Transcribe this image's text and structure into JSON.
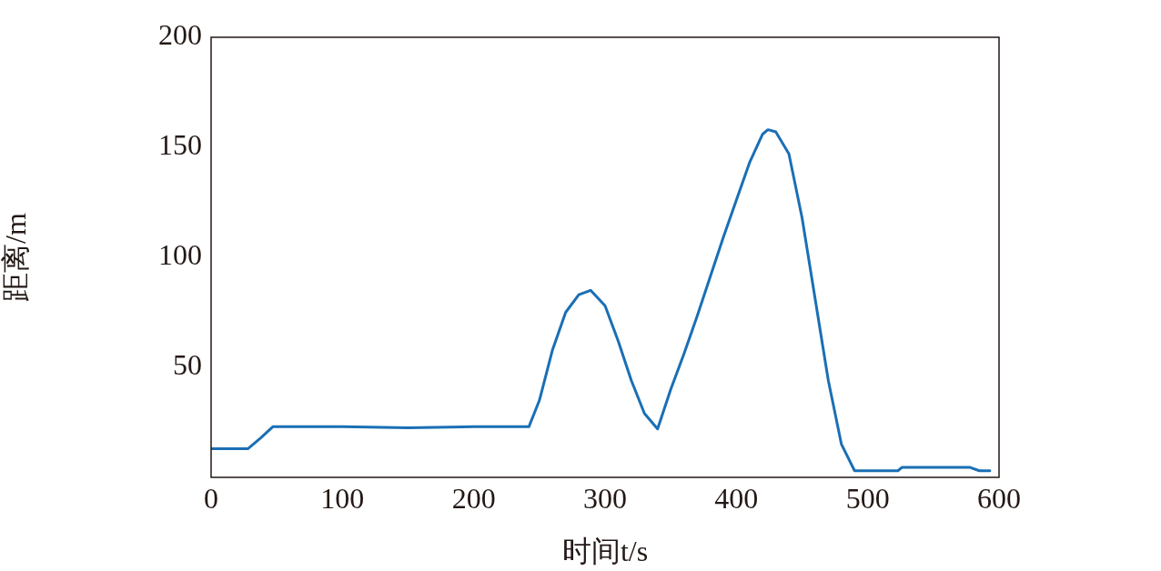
{
  "chart_data": {
    "type": "line",
    "xlabel": "时间t/s",
    "ylabel": "距离/m",
    "xlim": [
      0,
      600
    ],
    "xticks": [
      0,
      100,
      200,
      300,
      400,
      500,
      600
    ],
    "ylim": [
      0,
      200
    ],
    "yticks": [
      50,
      100,
      150,
      200
    ],
    "grid": false,
    "legend": false,
    "marker": "none",
    "line_style": "solid",
    "series": [
      {
        "color": "#1a6fb5",
        "x": [
          0,
          28,
          38,
          47,
          100,
          150,
          200,
          242,
          250,
          260,
          270,
          280,
          289,
          300,
          310,
          320,
          330,
          340,
          350,
          360,
          370,
          380,
          390,
          400,
          410,
          420,
          424,
          430,
          440,
          450,
          460,
          470,
          480,
          490,
          500,
          523,
          526,
          578,
          585,
          593
        ],
        "values": [
          13,
          13,
          18,
          23,
          23,
          22.5,
          23,
          23,
          35,
          58,
          75,
          83,
          85,
          78,
          62,
          44,
          29,
          22,
          40,
          56,
          73,
          91,
          109,
          126,
          143,
          156,
          158,
          157,
          147,
          118,
          81,
          44,
          15,
          3,
          3,
          3,
          4.5,
          4.5,
          3,
          3
        ]
      }
    ]
  }
}
